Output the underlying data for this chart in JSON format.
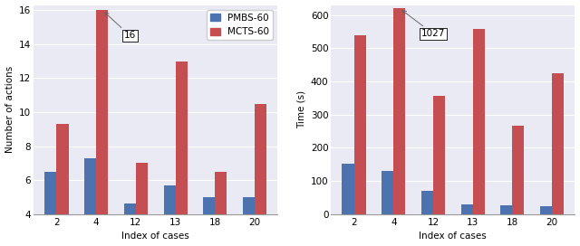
{
  "categories": [
    2,
    4,
    12,
    13,
    18,
    20
  ],
  "cat_labels": [
    "2",
    "4",
    "12",
    "13",
    "18",
    "20"
  ],
  "left": {
    "pmbs": [
      6.5,
      7.3,
      4.6,
      5.7,
      5.0,
      5.0
    ],
    "mcts": [
      9.3,
      16.0,
      7.0,
      13.0,
      6.5,
      10.5
    ],
    "ylabel": "Number of actions",
    "xlabel": "Index of cases",
    "ylim": [
      4,
      16.3
    ],
    "yticks": [
      4,
      6,
      8,
      10,
      12,
      14,
      16
    ],
    "annotation_val": "16",
    "annotation_idx": 1
  },
  "right": {
    "pmbs": [
      152,
      130,
      70,
      30,
      27,
      25
    ],
    "mcts": [
      540,
      620,
      355,
      558,
      265,
      425
    ],
    "ylabel": "Time (s)",
    "xlabel": "Index of cases",
    "ylim": [
      0,
      630
    ],
    "yticks": [
      0,
      100,
      200,
      300,
      400,
      500,
      600
    ],
    "annotation_val": "1027",
    "annotation_idx": 1
  },
  "pmbs_color": "#4C72B0",
  "mcts_color": "#C44E52",
  "bg_color": "#EAEAF4",
  "bar_width": 0.3,
  "legend_labels": [
    "PMBS-60",
    "MCTS-60"
  ],
  "fontsize": 7.5
}
